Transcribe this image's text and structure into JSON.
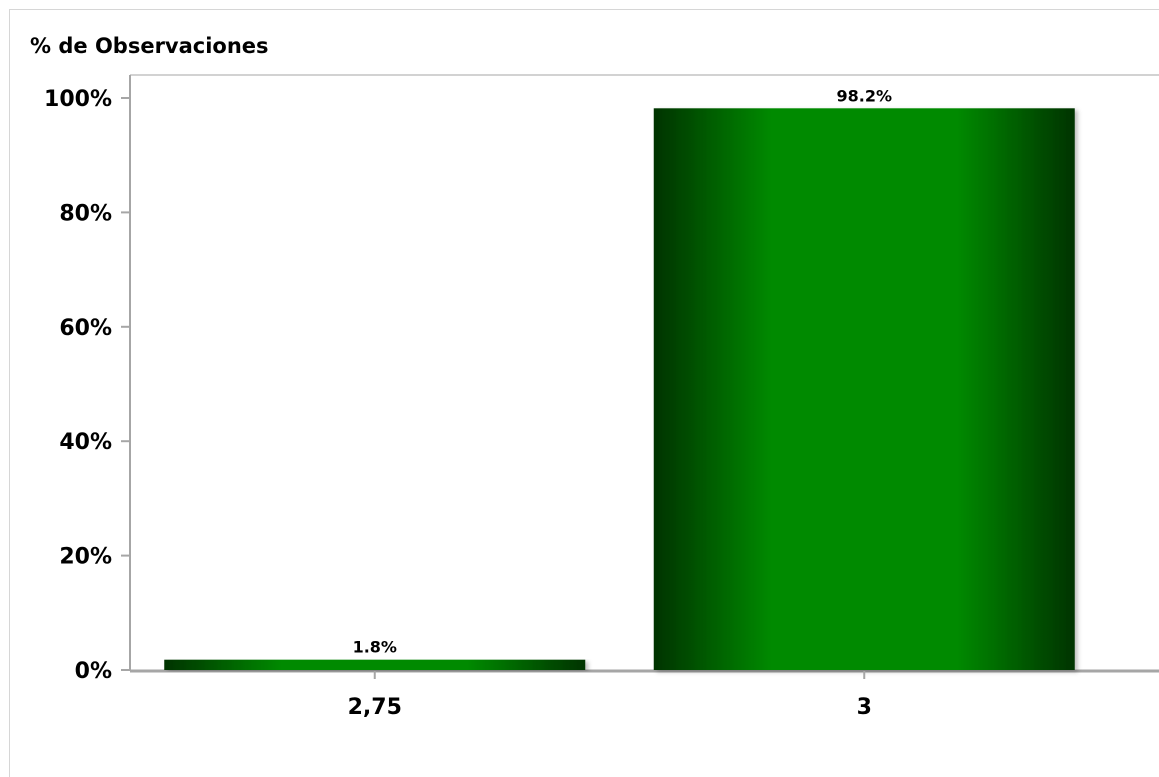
{
  "chart_data": {
    "type": "bar",
    "categories": [
      "2,75",
      "3"
    ],
    "values": [
      1.8,
      98.2
    ],
    "data_labels": [
      "1.8%",
      "98.2%"
    ],
    "ylabel": "% de Observaciones",
    "xlabel": "",
    "ylim": [
      0,
      100
    ],
    "yticks": [
      0,
      20,
      40,
      60,
      80,
      100
    ],
    "ytick_labels": [
      "0%",
      "20%",
      "40%",
      "60%",
      "80%",
      "100%"
    ],
    "grid": false,
    "legend": "none",
    "colors": {
      "bar_dark": "#003300",
      "bar_light": "#008a00",
      "axis": "#a6a6a6"
    }
  }
}
